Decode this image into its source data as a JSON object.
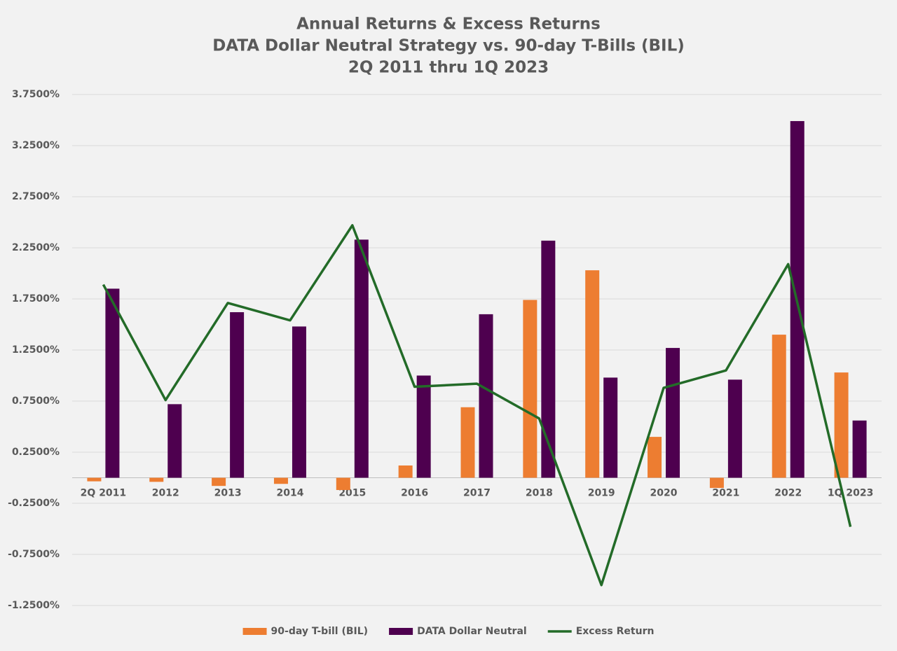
{
  "chart_data": {
    "type": "bar",
    "title": [
      "Annual Returns & Excess Returns",
      "DATA Dollar Neutral Strategy vs. 90-day T-Bills (BIL)",
      "2Q 2011 thru 1Q 2023"
    ],
    "categories": [
      "2Q 2011",
      "2012",
      "2013",
      "2014",
      "2015",
      "2016",
      "2017",
      "2018",
      "2019",
      "2020",
      "2021",
      "2022",
      "1Q 2023"
    ],
    "series": [
      {
        "name": "90-day T-bill (BIL)",
        "type": "bar",
        "color": "#ed7d31",
        "values": [
          -0.035,
          -0.04,
          -0.08,
          -0.06,
          -0.12,
          0.12,
          0.69,
          1.74,
          2.03,
          0.4,
          -0.1,
          1.4,
          1.03
        ]
      },
      {
        "name": "DATA Dollar Neutral",
        "type": "bar",
        "color": "#4e004f",
        "values": [
          1.85,
          0.72,
          1.62,
          1.48,
          2.33,
          1.0,
          1.6,
          2.32,
          0.98,
          1.27,
          0.96,
          3.49,
          0.56
        ]
      },
      {
        "name": "Excess Return",
        "type": "line",
        "color": "#236b28",
        "values": [
          1.89,
          0.76,
          1.71,
          1.54,
          2.47,
          0.89,
          0.92,
          0.58,
          -1.05,
          0.88,
          1.05,
          2.09,
          -0.48
        ]
      }
    ],
    "ylim": [
      -1.25,
      3.75
    ],
    "yticks": [
      {
        "value": -1.25,
        "label": "-1.2500%"
      },
      {
        "value": -0.75,
        "label": "-0.7500%"
      },
      {
        "value": -0.25,
        "label": "-0.2500%"
      },
      {
        "value": 0.25,
        "label": "0.2500%"
      },
      {
        "value": 0.75,
        "label": "0.7500%"
      },
      {
        "value": 1.25,
        "label": "1.2500%"
      },
      {
        "value": 1.75,
        "label": "1.7500%"
      },
      {
        "value": 2.25,
        "label": "2.2500%"
      },
      {
        "value": 2.75,
        "label": "2.7500%"
      },
      {
        "value": 3.25,
        "label": "3.2500%"
      },
      {
        "value": 3.75,
        "label": "3.7500%"
      }
    ],
    "grid": true,
    "legend": "bottom"
  }
}
